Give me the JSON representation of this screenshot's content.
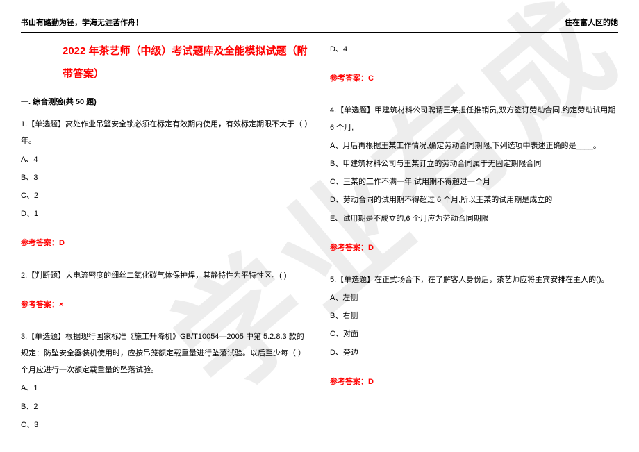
{
  "header": {
    "left": "书山有路勤为径，学海无涯苦作舟！",
    "right": "住在富人区的她"
  },
  "title": "2022 年茶艺师（中级）考试题库及全能模拟试题（附带答案）",
  "section": "一. 综合测验(共 50 题)",
  "watermark": "学业有成",
  "left_col": {
    "q1": {
      "text": "1.【单选题】高处作业吊篮安全锁必须在标定有效期内使用，有效标定期限不大于（ ）年。",
      "a": "A、4",
      "b": "B、3",
      "c": "C、2",
      "d": "D、1",
      "answer": "参考答案：D"
    },
    "q2": {
      "text": "2.【判断题】大电流密度的细丝二氧化碳气体保护焊，其静特性为平特性区。( )",
      "answer": "参考答案：×"
    },
    "q3": {
      "text": "3.【单选题】根据现行国家标准《施工升降机》GB/T10054—2005 中第 5.2.8.3 款的规定：防坠安全器装机使用时，应按吊笼额定载重量进行坠落试验。以后至少每（ ）个月应进行一次额定载重量的坠落试验。",
      "a": "A、1",
      "b": "B、2",
      "c": "C、3"
    }
  },
  "right_col": {
    "q3d": "D、4",
    "q3answer": "参考答案：C",
    "q4": {
      "text": "4.【单选题】甲建筑材料公司聘请王某担任推销员,双方签订劳动合同,约定劳动试用期 6 个月,",
      "a": "A、月后再根据王某工作情况,确定劳动合同期限,下列选项中表述正确的是____。",
      "b": "B、甲建筑材料公司与王某订立的劳动合同属于无固定期限合同",
      "c": "C、王某的工作不满一年,试用期不得超过一个月",
      "d": "D、劳动合同的试用期不得超过 6 个月,所以王某的试用期是成立的",
      "e": "E、试用期是不成立的,6 个月应为劳动合同期限",
      "answer": "参考答案：D"
    },
    "q5": {
      "text": "5.【单选题】在正式场合下，在了解客人身份后，茶艺师应将主宾安排在主人的()。",
      "a": "A、左侧",
      "b": "B、右侧",
      "c": "C、对面",
      "d": "D、旁边",
      "answer": "参考答案：D"
    }
  }
}
